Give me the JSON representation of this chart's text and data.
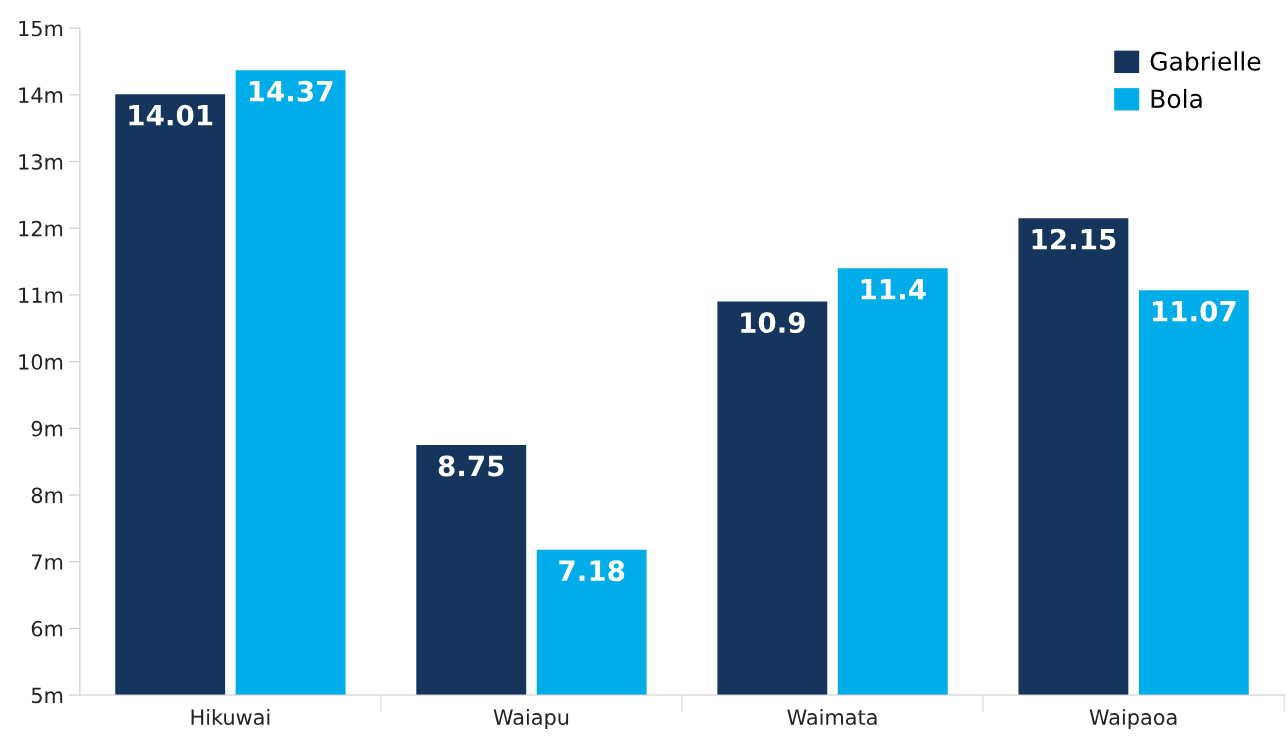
{
  "chart_data": {
    "type": "bar",
    "categories": [
      "Hikuwai",
      "Waiapu",
      "Waimata",
      "Waipaoa"
    ],
    "series": [
      {
        "name": "Gabrielle",
        "color": "#15355c",
        "values": [
          14.01,
          8.75,
          10.9,
          12.15
        ]
      },
      {
        "name": "Bola",
        "color": "#00ade8",
        "values": [
          14.37,
          7.18,
          11.4,
          11.07
        ]
      }
    ],
    "ylim": [
      5,
      15
    ],
    "yticks": [
      {
        "value": 5,
        "label": "5m"
      },
      {
        "value": 6,
        "label": "6m"
      },
      {
        "value": 7,
        "label": "7m"
      },
      {
        "value": 8,
        "label": "8m"
      },
      {
        "value": 9,
        "label": "9m"
      },
      {
        "value": 10,
        "label": "10m"
      },
      {
        "value": 11,
        "label": "11m"
      },
      {
        "value": 12,
        "label": "12m"
      },
      {
        "value": 13,
        "label": "13m"
      },
      {
        "value": 14,
        "label": "14m"
      },
      {
        "value": 15,
        "label": "15m"
      }
    ],
    "data_labels": true,
    "legend": "top right",
    "grid": false
  }
}
